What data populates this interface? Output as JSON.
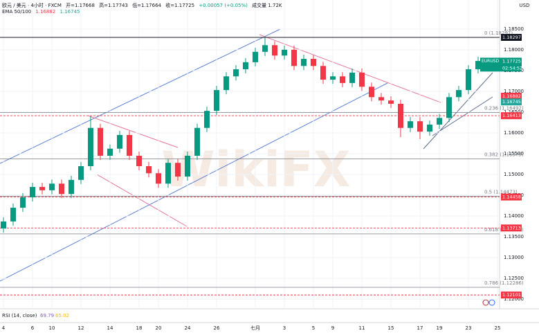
{
  "chart_data": {
    "type": "candlestick",
    "header": {
      "symbol": "欧元 / 美元 · 4小时 · FXCM",
      "open": "开=1.17668",
      "high": "高=1.17743",
      "low": "低=1.17664",
      "close": "收=1.17725",
      "change": "+0.00057 (+0.05%)",
      "volume": "成交量 1.72K"
    },
    "currency": "USD",
    "watermark": "WikiFX",
    "categories": [
      "4",
      null,
      null,
      "6",
      null,
      "10",
      null,
      null,
      "12",
      null,
      null,
      "14",
      null,
      null,
      "18",
      null,
      "20",
      null,
      null,
      "24",
      null,
      null,
      "26",
      null,
      null,
      null,
      "七月",
      null,
      null,
      "3",
      null,
      null,
      "5",
      null,
      "9",
      null,
      null,
      "11",
      null,
      null,
      "15",
      null,
      null,
      "17",
      null,
      "19",
      null,
      null,
      "23",
      null,
      null,
      "25"
    ],
    "open": [
      1.137,
      1.1387,
      1.142,
      1.1445,
      1.147,
      1.1462,
      1.1478,
      1.1453,
      1.1487,
      1.152,
      1.1612,
      1.1545,
      1.1562,
      1.1595,
      1.1545,
      1.152,
      1.1503,
      1.1478,
      1.1528,
      1.1495,
      1.1545,
      1.1612,
      1.1653,
      1.1703,
      1.1736,
      1.1753,
      1.177,
      1.1795,
      1.1811,
      1.1786,
      1.18,
      1.1761,
      1.1778,
      1.1761,
      1.1728,
      1.1736,
      1.172,
      1.1745,
      1.1711,
      1.1686,
      1.1678,
      1.167,
      1.1612,
      1.1628,
      1.1603,
      1.162,
      1.1636,
      1.1686,
      1.1703,
      1.1753,
      null,
      null
    ],
    "high": [
      1.1397,
      1.143,
      1.1455,
      1.148,
      1.148,
      1.1488,
      1.1488,
      1.1497,
      1.153,
      1.164,
      1.1622,
      1.1572,
      1.1605,
      1.1605,
      1.1555,
      1.153,
      1.1513,
      1.1538,
      1.1538,
      1.1555,
      1.1622,
      1.1663,
      1.1713,
      1.1746,
      1.1763,
      1.178,
      1.1805,
      1.183,
      1.1821,
      1.181,
      1.181,
      1.1788,
      1.1788,
      1.1771,
      1.1746,
      1.1746,
      1.1755,
      1.1755,
      1.1721,
      1.1696,
      1.1688,
      1.168,
      1.1638,
      1.1638,
      1.163,
      1.1646,
      1.1696,
      1.1713,
      1.1763,
      1.1783,
      null,
      null
    ],
    "low": [
      1.136,
      1.1377,
      1.141,
      1.1435,
      1.1452,
      1.1452,
      1.1443,
      1.1443,
      1.1477,
      1.151,
      1.1535,
      1.1535,
      1.1552,
      1.1535,
      1.151,
      1.1493,
      1.1468,
      1.1468,
      1.1485,
      1.1485,
      1.1535,
      1.1602,
      1.1643,
      1.1693,
      1.1726,
      1.1743,
      1.176,
      1.1785,
      1.1776,
      1.1776,
      1.1751,
      1.1751,
      1.1751,
      1.1718,
      1.1718,
      1.171,
      1.171,
      1.1701,
      1.1676,
      1.1668,
      1.166,
      1.159,
      1.1602,
      1.1585,
      1.1593,
      1.161,
      1.1626,
      1.1676,
      1.1693,
      1.1743,
      null,
      null
    ],
    "close": [
      1.1387,
      1.142,
      1.1445,
      1.147,
      1.1462,
      1.1478,
      1.1453,
      1.1487,
      1.152,
      1.1612,
      1.1545,
      1.1562,
      1.1595,
      1.1545,
      1.152,
      1.1503,
      1.1478,
      1.1528,
      1.1495,
      1.1545,
      1.1612,
      1.1653,
      1.1703,
      1.1736,
      1.1753,
      1.177,
      1.1795,
      1.1811,
      1.1786,
      1.18,
      1.1761,
      1.1778,
      1.1761,
      1.1728,
      1.1736,
      1.172,
      1.1745,
      1.1711,
      1.1686,
      1.1678,
      1.167,
      1.1612,
      1.1628,
      1.1603,
      1.162,
      1.1636,
      1.1686,
      1.1703,
      1.1753,
      1.1773,
      null,
      null
    ],
    "up_color": "#089981",
    "down_color": "#f23645",
    "ylim": [
      1.1187,
      1.1873
    ],
    "yticks": [
      {
        "value": 1.12,
        "label": "1.12000"
      },
      {
        "value": 1.125,
        "label": "1.12500"
      },
      {
        "value": 1.13,
        "label": "1.13000"
      },
      {
        "value": 1.135,
        "label": "1.13500"
      },
      {
        "value": 1.14,
        "label": "1.14000"
      },
      {
        "value": 1.145,
        "label": "1.14500"
      },
      {
        "value": 1.15,
        "label": "1.15000"
      },
      {
        "value": 1.155,
        "label": "1.15500"
      },
      {
        "value": 1.16,
        "label": "1.16000"
      },
      {
        "value": 1.165,
        "label": "1.16500"
      },
      {
        "value": 1.17,
        "label": "1.17000"
      },
      {
        "value": 1.175,
        "label": "1.17500"
      },
      {
        "value": 1.18,
        "label": "1.18000"
      },
      {
        "value": 1.185,
        "label": "1.18500"
      }
    ],
    "grid": true,
    "ema": {
      "label": "EMA 50/100",
      "series": [
        {
          "value": 1.16882,
          "label": "1.16882",
          "color": "#f23645"
        },
        {
          "value": 1.16745,
          "label": "1.16745",
          "color": "#26a69a"
        }
      ]
    },
    "price_box": {
      "symbol": "EURUSD",
      "price": {
        "value": 1.17725,
        "label": "1.17725"
      },
      "countdown": "02:54:52",
      "color": "#089981"
    },
    "levels": [
      {
        "value": 1.18297,
        "label": "1.18297",
        "color": "#131722",
        "dashed": false
      },
      {
        "value": 1.16413,
        "label": "1.16413",
        "color": "#f23645",
        "dashed": true
      },
      {
        "value": 1.14458,
        "label": "1.14458",
        "color": "#f23645",
        "dashed": true
      },
      {
        "value": 1.13713,
        "label": "1.13713",
        "color": "#f23645",
        "dashed": true
      },
      {
        "value": 1.12101,
        "label": "1.12101",
        "color": "#f23645",
        "dashed": true
      }
    ],
    "fib": [
      {
        "value": 1.18297,
        "label": "0 (1.18297)"
      },
      {
        "value": 1.16492,
        "label": "0.236 (1.16492)"
      },
      {
        "value": 1.15375,
        "label": "0.382 (1.15375)"
      },
      {
        "value": 1.14473,
        "label": "0.5 (1.14473)"
      },
      {
        "value": 1.13571,
        "label": "0.618 (1.13571)"
      },
      {
        "value": 1.12286,
        "label": "0.786 (1.12286)"
      }
    ],
    "rsi": {
      "label": "RSI (14, close)",
      "value": "69.79",
      "signal": "65.02"
    }
  }
}
